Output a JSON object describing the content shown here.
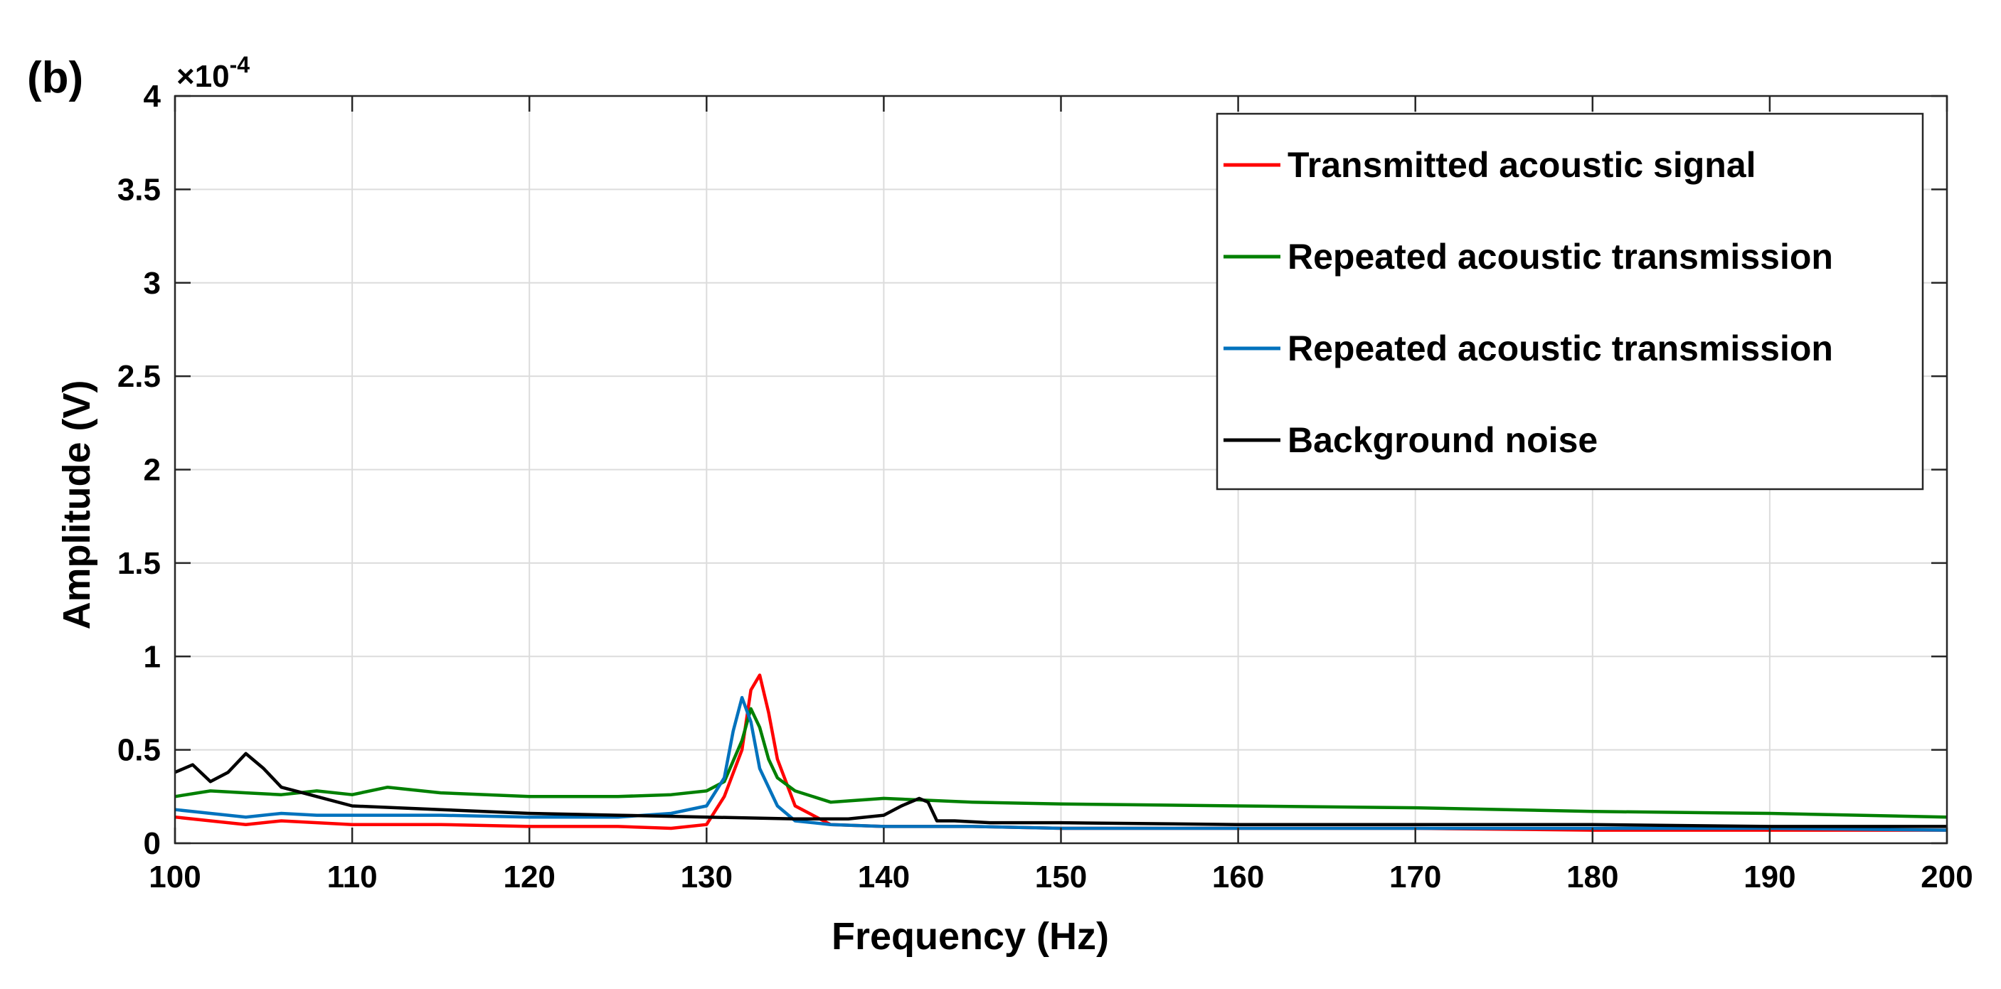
{
  "panel_label": "(b)",
  "chart_data": {
    "type": "line",
    "xlabel": "Frequency (Hz)",
    "ylabel": "Amplitude (V)",
    "xlim": [
      100,
      200
    ],
    "ylim": [
      0,
      4
    ],
    "y_multiplier_label": "×10",
    "y_multiplier_exponent": "-4",
    "x_ticks": [
      "100",
      "110",
      "120",
      "130",
      "140",
      "150",
      "160",
      "170",
      "180",
      "190",
      "200"
    ],
    "y_ticks": [
      "0",
      "0.5",
      "1",
      "1.5",
      "2",
      "2.5",
      "3",
      "3.5",
      "4"
    ],
    "grid": true,
    "legend_position": "top-right",
    "series": [
      {
        "name": "Transmitted acoustic signal",
        "color": "#ff0000",
        "x": [
          100,
          102,
          104,
          106,
          108,
          110,
          115,
          120,
          125,
          128,
          130,
          131,
          132,
          132.5,
          133,
          133.5,
          134,
          135,
          137,
          140,
          145,
          150,
          160,
          170,
          180,
          190,
          200
        ],
        "y": [
          0.14,
          0.12,
          0.1,
          0.12,
          0.11,
          0.1,
          0.1,
          0.09,
          0.09,
          0.08,
          0.1,
          0.25,
          0.5,
          0.82,
          0.9,
          0.7,
          0.45,
          0.2,
          0.1,
          0.09,
          0.09,
          0.08,
          0.08,
          0.08,
          0.07,
          0.07,
          0.07
        ]
      },
      {
        "name": "Repeated acoustic transmission",
        "color": "#008000",
        "x": [
          100,
          102,
          104,
          106,
          108,
          110,
          112,
          115,
          120,
          125,
          128,
          130,
          131,
          132,
          132.5,
          133,
          133.5,
          134,
          135,
          137,
          140,
          145,
          150,
          160,
          170,
          180,
          190,
          200
        ],
        "y": [
          0.25,
          0.28,
          0.27,
          0.26,
          0.28,
          0.26,
          0.3,
          0.27,
          0.25,
          0.25,
          0.26,
          0.28,
          0.33,
          0.55,
          0.72,
          0.62,
          0.45,
          0.35,
          0.28,
          0.22,
          0.24,
          0.22,
          0.21,
          0.2,
          0.19,
          0.17,
          0.16,
          0.14
        ]
      },
      {
        "name": "Repeated acoustic transmission",
        "color": "#0072bd",
        "x": [
          100,
          102,
          104,
          106,
          108,
          110,
          115,
          120,
          125,
          128,
          130,
          131,
          131.5,
          132,
          132.5,
          133,
          134,
          135,
          137,
          140,
          145,
          150,
          160,
          170,
          180,
          190,
          200
        ],
        "y": [
          0.18,
          0.16,
          0.14,
          0.16,
          0.15,
          0.15,
          0.15,
          0.14,
          0.14,
          0.16,
          0.2,
          0.35,
          0.6,
          0.78,
          0.65,
          0.4,
          0.2,
          0.12,
          0.1,
          0.09,
          0.09,
          0.08,
          0.08,
          0.08,
          0.08,
          0.08,
          0.07
        ]
      },
      {
        "name": "Background noise",
        "color": "#000000",
        "x": [
          100,
          101,
          102,
          103,
          104,
          105,
          106,
          108,
          110,
          115,
          120,
          125,
          130,
          135,
          138,
          140,
          141,
          142,
          142.5,
          143,
          144,
          146,
          150,
          160,
          170,
          180,
          190,
          200
        ],
        "y": [
          0.38,
          0.42,
          0.33,
          0.38,
          0.48,
          0.4,
          0.3,
          0.25,
          0.2,
          0.18,
          0.16,
          0.15,
          0.14,
          0.13,
          0.13,
          0.15,
          0.2,
          0.24,
          0.22,
          0.12,
          0.12,
          0.11,
          0.11,
          0.1,
          0.1,
          0.1,
          0.09,
          0.09
        ]
      }
    ]
  }
}
